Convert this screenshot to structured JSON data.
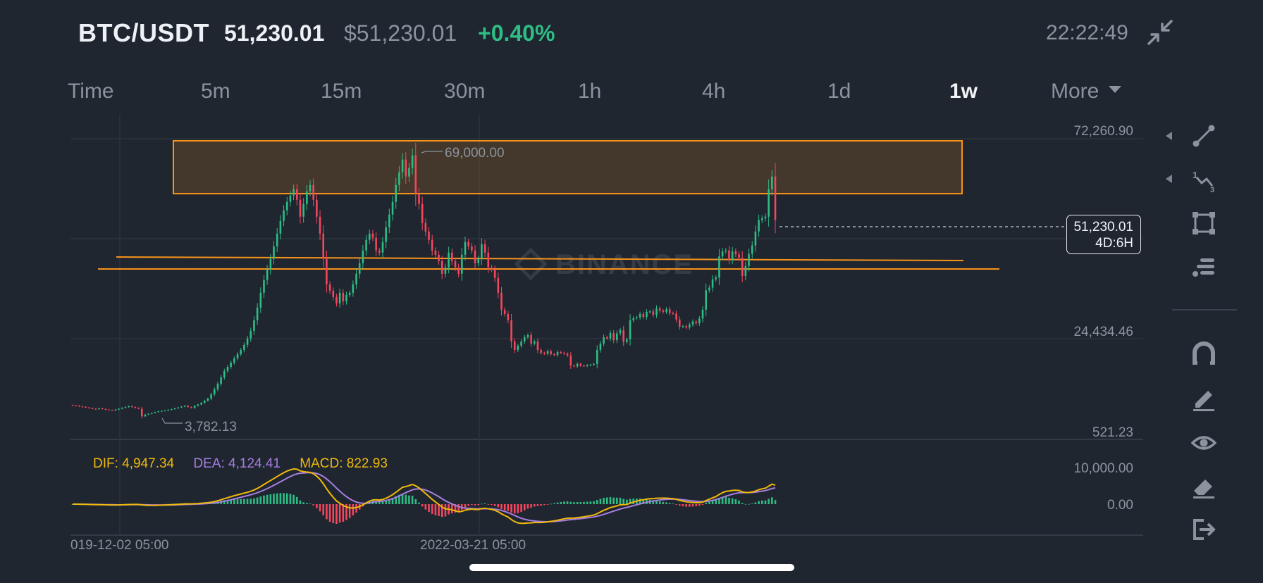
{
  "header": {
    "pair": "BTC/USDT",
    "last_price": "51,230.01",
    "usd_price": "$51,230.01",
    "change": "+0.40%",
    "clock": "22:22:49"
  },
  "timeframes": {
    "time": "Time",
    "m5": "5m",
    "m15": "15m",
    "m30": "30m",
    "h1": "1h",
    "h4": "4h",
    "d1": "1d",
    "w1": "1w",
    "more": "More",
    "active": "1w"
  },
  "price_axis": {
    "top": "72,260.90",
    "mid": "24,434.46",
    "bottom": "521.23",
    "macd_top": "10,000.00",
    "macd_zero": "0.00"
  },
  "time_axis": {
    "left": "019-12-02 05:00",
    "center": "2022-03-21 05:00"
  },
  "annotations": {
    "high": "69,000.00",
    "low": "3,782.13",
    "watermark": "BINANCE"
  },
  "price_tag": {
    "price": "51,230.01",
    "countdown": "4D:6H"
  },
  "macd": {
    "dif": "DIF: 4,947.34",
    "dea": "DEA: 4,124.41",
    "macd": "MACD: 822.93"
  },
  "colors": {
    "background": "#1f2630",
    "up": "#2ebd85",
    "down": "#f6465d",
    "drawing": "#f7931a",
    "dif_line": "#f0b90b",
    "dea_line": "#a67ee0"
  },
  "toolbar": {
    "icons": [
      "trend-line-icon",
      "fibonacci-icon",
      "rectangle-icon",
      "indicator-icon",
      "magnet-icon",
      "brush-icon",
      "visibility-icon",
      "eraser-icon",
      "exit-icon"
    ]
  },
  "chart_data": {
    "type": "candlestick",
    "symbol": "BTC/USDT",
    "interval": "1w",
    "y_axis_labels": [
      72260.9,
      24434.46,
      521.23
    ],
    "ylim": [
      521.23,
      72260.9
    ],
    "annotated_high": 69000.0,
    "annotated_low": 3782.13,
    "last_price": 51230.01,
    "x_labels": [
      "019-12-02 05:00",
      "2022-03-21 05:00"
    ],
    "closes": [
      7400,
      7300,
      7150,
      7050,
      6900,
      6750,
      6600,
      6500,
      6700,
      6550,
      6400,
      6300,
      6200,
      6400,
      6600,
      6800,
      7000,
      7200,
      7000,
      6800,
      6600,
      4800,
      5200,
      5400,
      5600,
      5800,
      6000,
      6100,
      6200,
      6350,
      6500,
      6700,
      6900,
      7100,
      7300,
      7000,
      6800,
      7300,
      7600,
      8000,
      8500,
      9000,
      10000,
      11200,
      12500,
      14000,
      15500,
      16500,
      17500,
      18500,
      19500,
      20500,
      21700,
      23200,
      25000,
      27500,
      30500,
      34000,
      37000,
      39500,
      42000,
      45000,
      48000,
      51000,
      53500,
      55500,
      57000,
      58500,
      56000,
      52000,
      55000,
      58000,
      59500,
      56000,
      52000,
      48000,
      42000,
      36000,
      34500,
      33000,
      31500,
      34000,
      32000,
      33500,
      34000,
      36000,
      38500,
      41000,
      44000,
      46500,
      48000,
      47000,
      44000,
      43500,
      46000,
      49500,
      52500,
      55500,
      59500,
      62500,
      65500,
      61500,
      63500,
      66500,
      57500,
      55000,
      50500,
      48500,
      46500,
      44000,
      43000,
      41500,
      38500,
      40000,
      43500,
      41500,
      40000,
      38500,
      43000,
      46000,
      45000,
      44000,
      41000,
      42000,
      45500,
      43500,
      40000,
      39500,
      37500,
      34000,
      30000,
      29000,
      27500,
      22500,
      20500,
      21500,
      22500,
      23500,
      24000,
      22000,
      22500,
      20500,
      19800,
      19600,
      20200,
      19500,
      19300,
      20000,
      19800,
      19600,
      19200,
      16800,
      16600,
      17200,
      16800,
      16700,
      16900,
      17000,
      17200,
      20500,
      22000,
      23500,
      23200,
      24500,
      22800,
      24400,
      25200,
      22400,
      23000,
      27500,
      28000,
      28200,
      29000,
      28300,
      29500,
      29600,
      28800,
      30300,
      29800,
      29500,
      30100,
      29200,
      29100,
      27700,
      26000,
      26100,
      25800,
      26500,
      27200,
      26800,
      27900,
      30000,
      34600,
      35200,
      37200,
      37600,
      42600,
      43800,
      44000,
      41800,
      43800,
      43100,
      42300,
      38000,
      40300,
      43200,
      45200,
      48500,
      51200,
      51600,
      52000,
      58500,
      61500,
      51230
    ],
    "macd": {
      "dif": 4947.34,
      "dea": 4124.41,
      "macd": 822.93
    }
  }
}
